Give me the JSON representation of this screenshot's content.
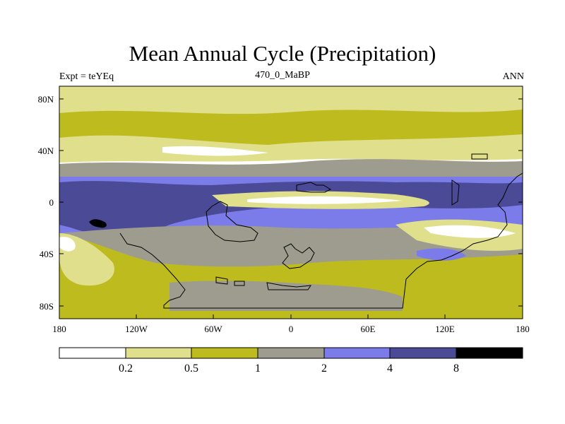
{
  "title": "Mean Annual Cycle (Precipitation)",
  "subtitle": {
    "left": "Expt = teYEq",
    "center": "470_0_MaBP",
    "right": "ANN"
  },
  "axes": {
    "y_ticks": [
      "80N",
      "40N",
      "0",
      "40S",
      "80S"
    ],
    "x_ticks": [
      "180",
      "120W",
      "60W",
      "0",
      "60E",
      "120E",
      "180"
    ]
  },
  "colors": {
    "c0": "#ffffff",
    "c1": "#e0df8c",
    "c2": "#bdbb1e",
    "c3": "#9e9c8e",
    "c4": "#7b7bea",
    "c5": "#4a4a96",
    "c6": "#000000"
  },
  "colorbar": {
    "labels": [
      "0.2",
      "0.5",
      "1",
      "2",
      "4",
      "8"
    ],
    "colors": [
      "#ffffff",
      "#e0df8c",
      "#bdbb1e",
      "#9e9c8e",
      "#7b7bea",
      "#4a4a96",
      "#000000"
    ]
  }
}
